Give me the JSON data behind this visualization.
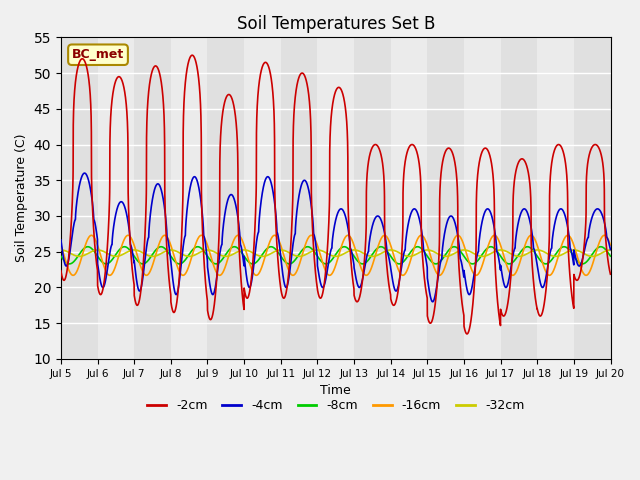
{
  "title": "Soil Temperatures Set B",
  "xlabel": "Time",
  "ylabel": "Soil Temperature (C)",
  "ylim": [
    10,
    55
  ],
  "yticks": [
    10,
    15,
    20,
    25,
    30,
    35,
    40,
    45,
    50,
    55
  ],
  "legend_labels": [
    "-2cm",
    "-4cm",
    "-8cm",
    "-16cm",
    "-32cm"
  ],
  "legend_colors": [
    "#cc0000",
    "#0000cc",
    "#00cc00",
    "#ff9900",
    "#cccc00"
  ],
  "annotation_text": "BC_met",
  "figsize": [
    6.4,
    4.8
  ],
  "dpi": 100,
  "bg_color": "#f0f0f0",
  "plot_bg_odd": "#e0e0e0",
  "plot_bg_even": "#ebebeb",
  "grid_color": "#ffffff",
  "peaks_2cm": [
    52,
    49.5,
    51,
    52.5,
    47,
    51.5,
    50,
    48,
    40,
    40,
    39.5,
    39.5,
    38,
    40,
    40
  ],
  "troughs_2cm": [
    21,
    19,
    17.5,
    16.5,
    15.5,
    18.5,
    18.5,
    18.5,
    18,
    17.5,
    15,
    13.5,
    16,
    16,
    21
  ],
  "peaks_4cm": [
    36,
    32,
    34.5,
    35.5,
    33,
    35.5,
    35,
    31,
    30,
    31,
    30,
    31,
    31,
    31,
    31
  ],
  "troughs_4cm": [
    23,
    20,
    19.5,
    19,
    19,
    20,
    20,
    20,
    20,
    19.5,
    18,
    19,
    20,
    20,
    23
  ],
  "mean_8cm": 24.5,
  "amp_8cm": 1.2,
  "phase_8cm": 0.15,
  "mean_16cm": 24.5,
  "amp_16cm": 2.8,
  "phase_16cm": 0.25,
  "mean_32cm": 24.8,
  "amp_32cm": 0.45,
  "phase_32cm": 0.42,
  "peak_hour": 14.0,
  "phase_4cm_delay": 1.5,
  "sharp_factor": 4.0
}
